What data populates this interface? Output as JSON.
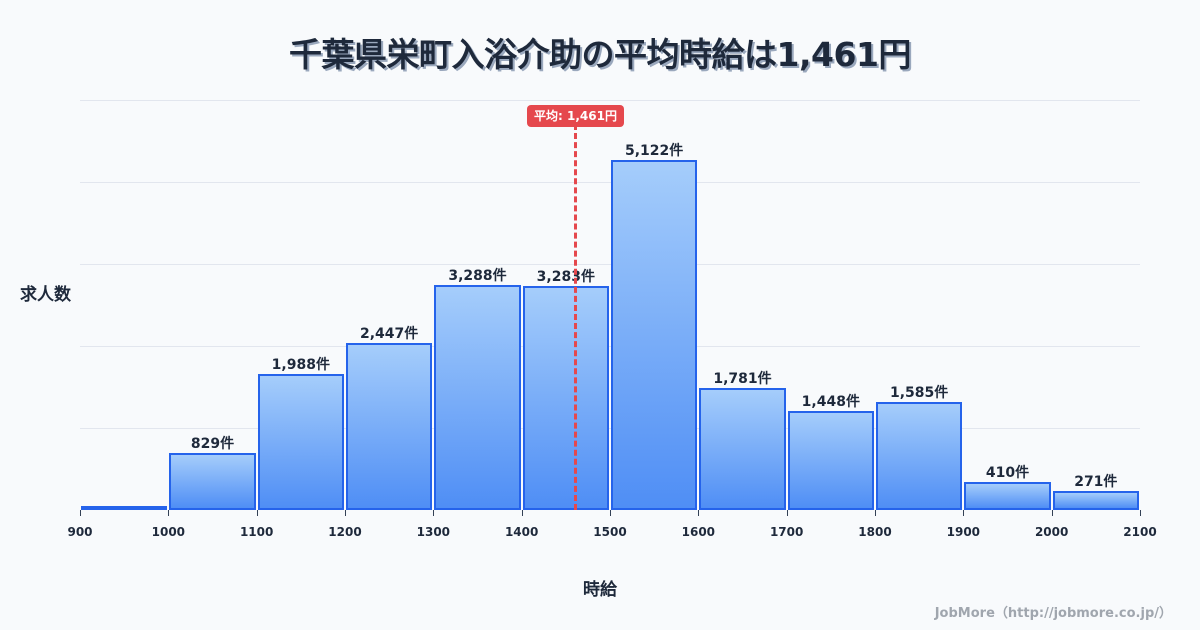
{
  "chart_data": {
    "type": "bar",
    "title": "千葉県栄町入浴介助の平均時給は1,461円",
    "xlabel": "時給",
    "ylabel": "求人数",
    "categories": [
      "900-1000",
      "1000-1100",
      "1100-1200",
      "1200-1300",
      "1300-1400",
      "1400-1500",
      "1500-1600",
      "1600-1700",
      "1700-1800",
      "1800-1900",
      "1900-2000",
      "2000-2100"
    ],
    "bin_edges": [
      900,
      1000,
      1100,
      1200,
      1300,
      1400,
      1500,
      1600,
      1700,
      1800,
      1900,
      2000,
      2100
    ],
    "values": [
      0,
      829,
      1988,
      2447,
      3288,
      3283,
      5122,
      1781,
      1448,
      1585,
      410,
      271
    ],
    "value_labels": [
      "",
      "829件",
      "1,988件",
      "2,447件",
      "3,288件",
      "3,283件",
      "5,122件",
      "1,781件",
      "1,448件",
      "1,585件",
      "410件",
      "271件"
    ],
    "x_ticks": [
      "900",
      "1000",
      "1100",
      "1200",
      "1300",
      "1400",
      "1500",
      "1600",
      "1700",
      "1800",
      "1900",
      "2000",
      "2100"
    ],
    "xlim": [
      900,
      2100
    ],
    "ylim": [
      0,
      6000
    ],
    "grid": true,
    "mean": 1461,
    "mean_label": "平均: 1,461円",
    "colors": {
      "bar_fill_top": "#a5cdfb",
      "bar_fill_bottom": "#4f8ef5",
      "bar_border": "#2563eb",
      "mean_line": "#e5484d"
    }
  },
  "footer": {
    "credit": "JobMore（http://jobmore.co.jp/）"
  }
}
